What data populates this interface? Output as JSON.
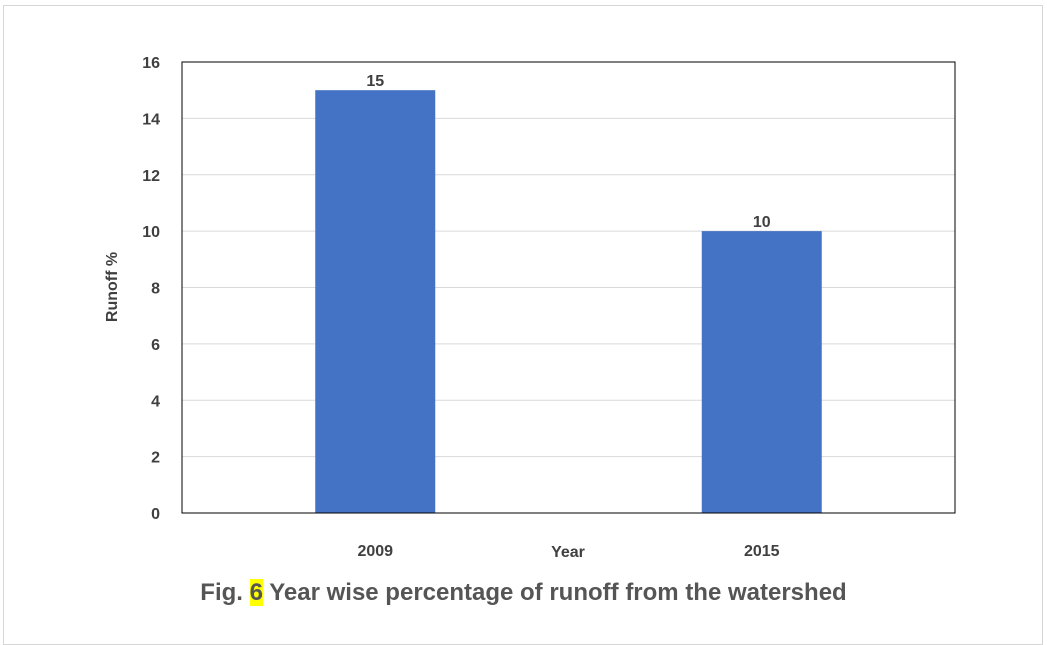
{
  "colors": {
    "bar": "#4472c4",
    "grid": "#d9d9d9",
    "axis": "#000000",
    "text": "#404040",
    "caption_highlight": "#ffff00"
  },
  "chart_data": {
    "type": "bar",
    "categories": [
      "2009",
      "2015"
    ],
    "values": [
      15,
      10
    ],
    "data_labels": [
      "15",
      "10"
    ],
    "xlabel": "Year",
    "ylabel": "Runoff %",
    "ylim": [
      0,
      16
    ],
    "yticks": [
      "0",
      "2",
      "4",
      "6",
      "8",
      "10",
      "12",
      "14",
      "16"
    ],
    "grid": true,
    "legend": "none"
  },
  "caption": {
    "prefix": "Fig.",
    "number": "6",
    "text": "Year wise percentage of runoff from the watershed"
  }
}
